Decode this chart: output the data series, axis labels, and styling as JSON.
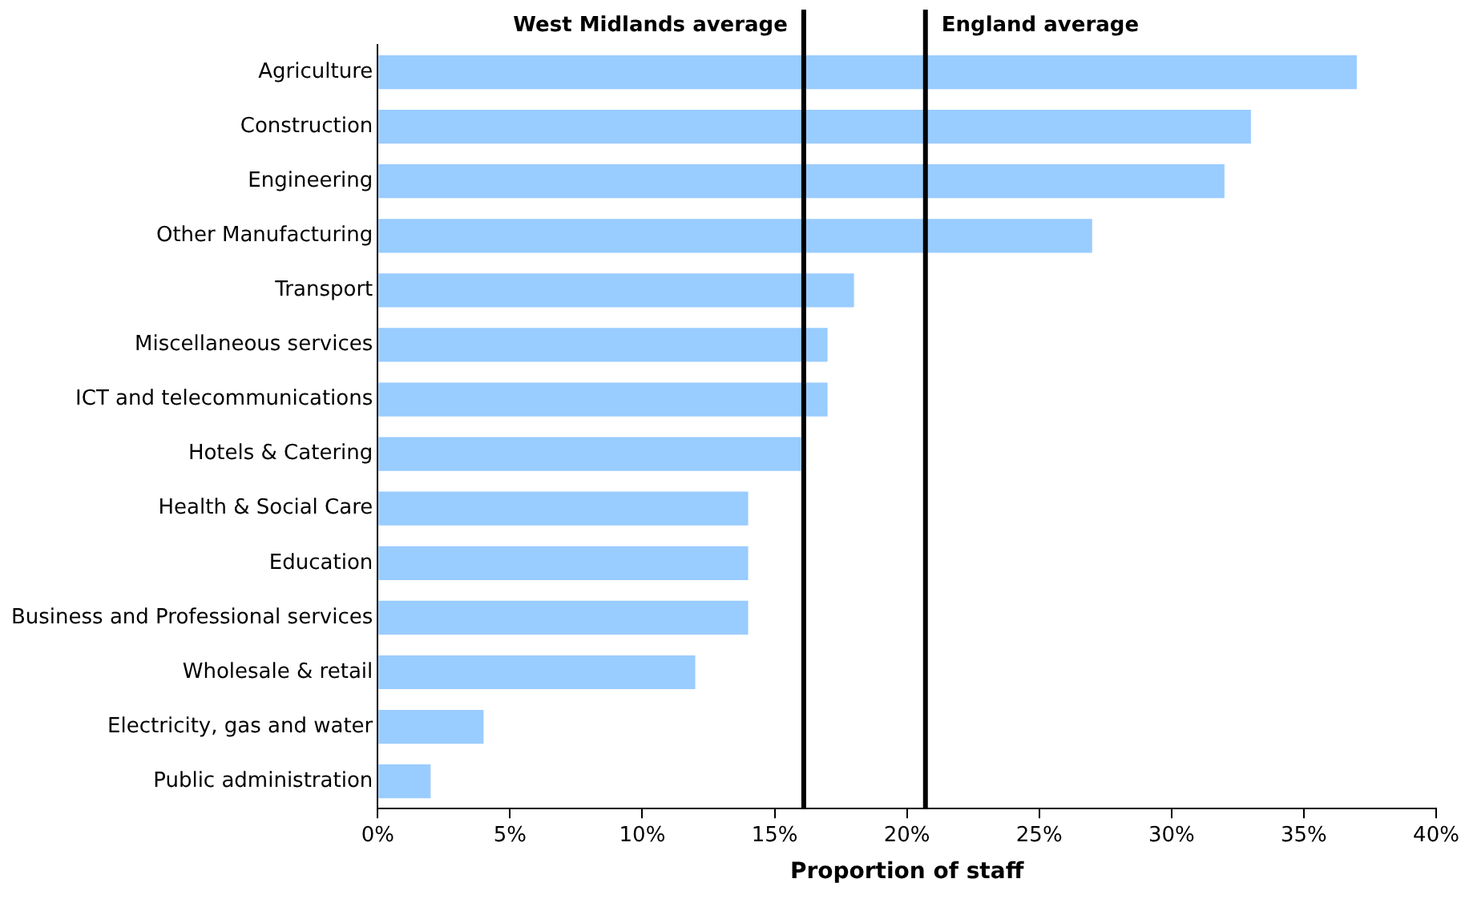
{
  "chart_data": {
    "type": "bar",
    "orientation": "horizontal",
    "xlabel": "Proportion of staff",
    "categories": [
      "Agriculture",
      "Construction",
      "Engineering",
      "Other Manufacturing",
      "Transport",
      "Miscellaneous services",
      "ICT and telecommunications",
      "Hotels & Catering",
      "Health & Social Care",
      "Education",
      "Business and Professional services",
      "Wholesale & retail",
      "Electricity, gas and water",
      "Public administration"
    ],
    "values": [
      37,
      33,
      32,
      27,
      18,
      17,
      17,
      16,
      14,
      14,
      14,
      12,
      4,
      2
    ],
    "color": "#99ccff",
    "xlim": [
      0,
      40
    ],
    "xticks": [
      {
        "value": 0,
        "label": "0%"
      },
      {
        "value": 5,
        "label": "5%"
      },
      {
        "value": 10,
        "label": "10%"
      },
      {
        "value": 15,
        "label": "15%"
      },
      {
        "value": 20,
        "label": "20%"
      },
      {
        "value": 25,
        "label": "25%"
      },
      {
        "value": 30,
        "label": "30%"
      },
      {
        "value": 35,
        "label": "35%"
      },
      {
        "value": 40,
        "label": "40%"
      }
    ],
    "ref_lines": [
      {
        "axis": "x",
        "value": 16.1,
        "label": "West Midlands average",
        "color": "#000000"
      },
      {
        "axis": "x",
        "value": 20.7,
        "label": "England average",
        "color": "#000000"
      }
    ],
    "grid": false,
    "legend": false
  }
}
